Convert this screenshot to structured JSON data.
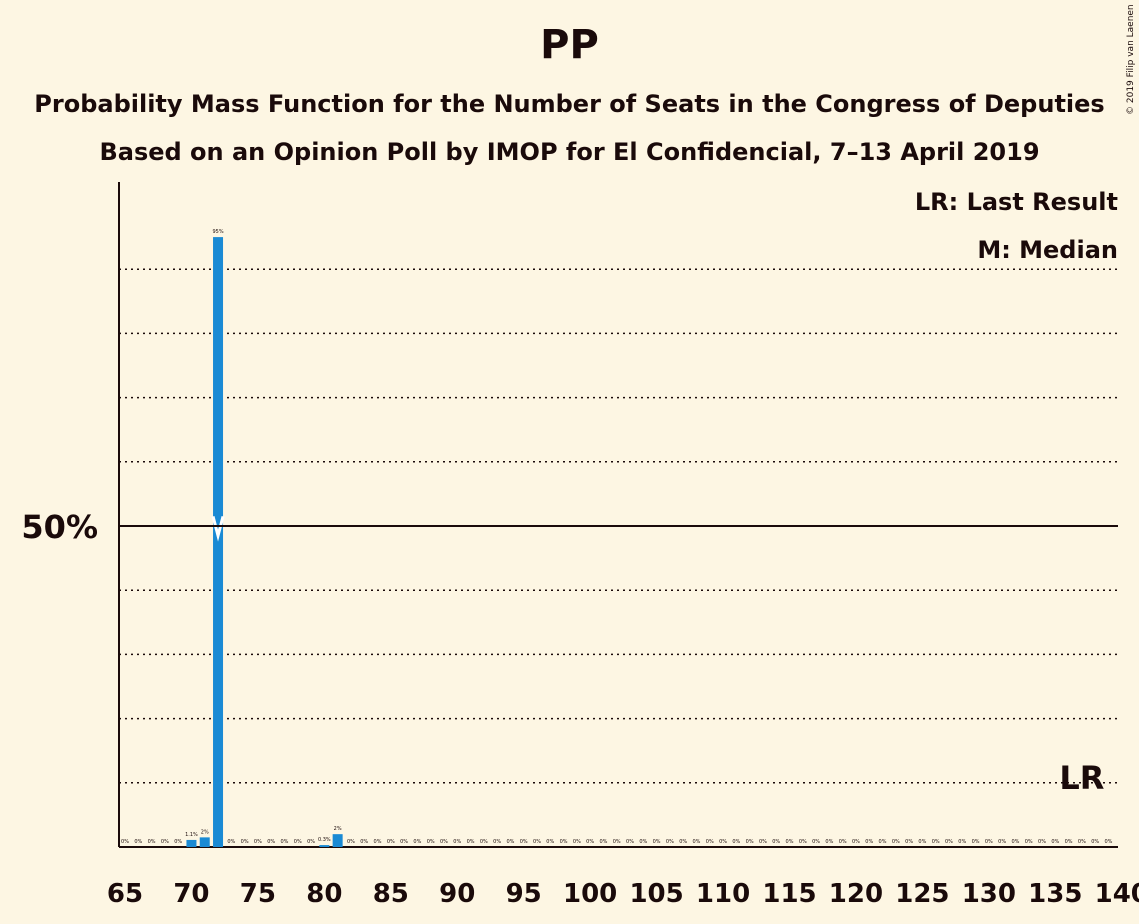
{
  "title": "PP",
  "subtitle": "Probability Mass Function for the Number of Seats in the Congress of Deputies",
  "subtitle2": "Based on an Opinion Poll by IMOP for El Confidencial, 7–13 April 2019",
  "copyright": "© 2019 Filip van Laenen",
  "legend": {
    "lr": "LR: Last Result",
    "median": "M: Median"
  },
  "markers": {
    "lr_label": "LR",
    "lr_seat": 137,
    "median_seat": 72
  },
  "colors": {
    "bar": "#1a8ad4",
    "text": "#1a0a0a",
    "background": "#fdf6e3"
  },
  "chart_data": {
    "type": "bar",
    "title": "PP",
    "xlabel": "",
    "ylabel": "",
    "ylim": [
      0,
      100
    ],
    "yticks_labeled": [
      {
        "value": 50,
        "label": "50%"
      }
    ],
    "gridlines": [
      10,
      20,
      30,
      40,
      60,
      70,
      80,
      90
    ],
    "x_ticks": [
      65,
      70,
      75,
      80,
      85,
      90,
      95,
      100,
      105,
      110,
      115,
      120,
      125,
      130,
      135,
      140
    ],
    "x": [
      65,
      66,
      67,
      68,
      69,
      70,
      71,
      72,
      73,
      74,
      75,
      76,
      77,
      78,
      79,
      80,
      81,
      82,
      83,
      84,
      85,
      86,
      87,
      88,
      89,
      90,
      91,
      92,
      93,
      94,
      95,
      96,
      97,
      98,
      99,
      100,
      101,
      102,
      103,
      104,
      105,
      106,
      107,
      108,
      109,
      110,
      111,
      112,
      113,
      114,
      115,
      116,
      117,
      118,
      119,
      120,
      121,
      122,
      123,
      124,
      125,
      126,
      127,
      128,
      129,
      130,
      131,
      132,
      133,
      134,
      135,
      136,
      137,
      138,
      139,
      140
    ],
    "values": [
      0,
      0,
      0,
      0,
      0,
      1.1,
      1.5,
      95,
      0,
      0,
      0,
      0,
      0,
      0,
      0,
      0.3,
      2,
      0,
      0,
      0,
      0,
      0,
      0,
      0,
      0,
      0,
      0,
      0,
      0,
      0,
      0,
      0,
      0,
      0,
      0,
      0,
      0,
      0,
      0,
      0,
      0,
      0,
      0,
      0,
      0,
      0,
      0,
      0,
      0,
      0,
      0,
      0,
      0,
      0,
      0,
      0,
      0,
      0,
      0,
      0,
      0,
      0,
      0,
      0,
      0,
      0,
      0,
      0,
      0,
      0,
      0,
      0,
      0,
      0,
      0,
      0
    ],
    "labels": [
      "0%",
      "0%",
      "0%",
      "0%",
      "0%",
      "1.1%",
      "2%",
      "95%",
      "0%",
      "0%",
      "0%",
      "0%",
      "0%",
      "0%",
      "0%",
      "0.3%",
      "2%",
      "0%",
      "0%",
      "0%",
      "0%",
      "0%",
      "0%",
      "0%",
      "0%",
      "0%",
      "0%",
      "0%",
      "0%",
      "0%",
      "0%",
      "0%",
      "0%",
      "0%",
      "0%",
      "0%",
      "0%",
      "0%",
      "0%",
      "0%",
      "0%",
      "0%",
      "0%",
      "0%",
      "0%",
      "0%",
      "0%",
      "0%",
      "0%",
      "0%",
      "0%",
      "0%",
      "0%",
      "0%",
      "0%",
      "0%",
      "0%",
      "0%",
      "0%",
      "0%",
      "0%",
      "0%",
      "0%",
      "0%",
      "0%",
      "0%",
      "0%",
      "0%",
      "0%",
      "0%",
      "0%",
      "0%",
      "0%",
      "0%",
      "0%"
    ]
  }
}
